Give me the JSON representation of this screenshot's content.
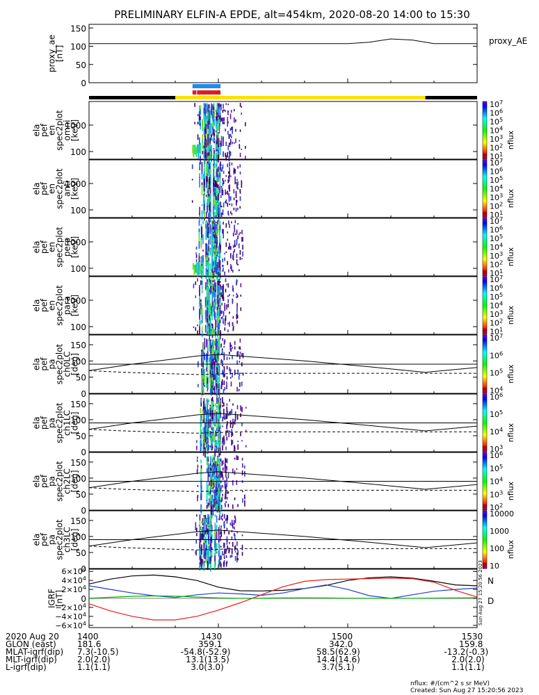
{
  "title": "PRELIMINARY ELFIN-A EPDE, alt=454km, 2020-08-20 14:00 to 15:30",
  "chart_data": [
    {
      "type": "line",
      "id": "proxy_ae",
      "ylabel": [
        "proxy_ae",
        "[nT]"
      ],
      "legend": "proxy_AE",
      "ylim": [
        0,
        160
      ],
      "yticks": [
        "150",
        "100",
        "50",
        "0"
      ],
      "x_minutes": [
        0,
        60,
        65,
        70,
        75,
        80,
        90
      ],
      "values": [
        107,
        107,
        111,
        120,
        117,
        107,
        107
      ]
    },
    {
      "type": "bar",
      "id": "science-zone-bars",
      "colors": {
        "night": "#000000",
        "science": "#ffe000",
        "blue": "#1e8cf0",
        "red": "#e81a1a"
      },
      "x_minutes": {
        "black_left": [
          0,
          20
        ],
        "yellow": [
          20,
          78
        ],
        "black_right": [
          78,
          90
        ],
        "blue": [
          24,
          30.5
        ],
        "red": [
          24,
          30.5
        ]
      }
    },
    {
      "type": "heatmap",
      "id": "spec-omni",
      "ylabel": [
        "ela",
        "pef",
        "en",
        "spec2plot",
        "omni",
        "[keV]"
      ],
      "yticks": [
        "1000",
        "100"
      ],
      "colorbar": {
        "label": "nflux",
        "ticks": [
          "10^7",
          "10^6",
          "10^5",
          "10^4",
          "10^3",
          "10^2",
          "10^1"
        ]
      }
    },
    {
      "type": "heatmap",
      "id": "spec-anti",
      "ylabel": [
        "ela",
        "pef",
        "en",
        "spec2plot",
        "anti",
        "[keV]"
      ],
      "yticks": [
        "1000",
        "100"
      ],
      "colorbar": {
        "label": "nflux",
        "ticks": [
          "10^7",
          "10^6",
          "10^5",
          "10^4",
          "10^3",
          "10^2",
          "10^1"
        ]
      }
    },
    {
      "type": "heatmap",
      "id": "spec-perp",
      "ylabel": [
        "ela",
        "pef",
        "en",
        "spec2plot",
        "perp",
        "[keV]"
      ],
      "yticks": [
        "1000",
        "100"
      ],
      "colorbar": {
        "label": "nflux",
        "ticks": [
          "10^7",
          "10^6",
          "10^5",
          "10^4",
          "10^3",
          "10^2",
          "10^1"
        ]
      }
    },
    {
      "type": "heatmap",
      "id": "spec-para",
      "ylabel": [
        "ela",
        "pef",
        "en",
        "spec2plot",
        "para",
        "[keV]"
      ],
      "yticks": [
        "1000",
        "100"
      ],
      "colorbar": {
        "label": "nflux",
        "ticks": [
          "10^7",
          "10^6",
          "10^5",
          "10^4",
          "10^3",
          "10^2",
          "10^1"
        ]
      }
    },
    {
      "type": "heatmap",
      "id": "pa-ch0",
      "ylabel": [
        "ela",
        "pef",
        "pa",
        "spec2plot",
        "ch0LC",
        "[deg]"
      ],
      "yticks": [
        "150",
        "100",
        "50",
        "0"
      ],
      "colorbar": {
        "label": "nflux",
        "ticks": [
          "10^7",
          "10^6",
          "10^5",
          "10^4"
        ]
      }
    },
    {
      "type": "heatmap",
      "id": "pa-ch1",
      "ylabel": [
        "ela",
        "pef",
        "pa",
        "spec2plot",
        "ch1LC",
        "[deg]"
      ],
      "yticks": [
        "150",
        "100",
        "50",
        "0"
      ],
      "colorbar": {
        "label": "nflux",
        "ticks": [
          "10^6",
          "10^5",
          "10^4",
          "10^3"
        ]
      }
    },
    {
      "type": "heatmap",
      "id": "pa-ch2",
      "ylabel": [
        "ela",
        "pef",
        "pa",
        "spec2plot",
        "ch2LC",
        "[deg]"
      ],
      "yticks": [
        "150",
        "100",
        "50",
        "0"
      ],
      "colorbar": {
        "label": "nflux",
        "ticks": [
          "10^6",
          "10^5",
          "10^4",
          "10^3",
          "10^2"
        ]
      }
    },
    {
      "type": "heatmap",
      "id": "pa-ch3",
      "ylabel": [
        "ela",
        "pef",
        "pa",
        "spec2plot",
        "ch3LC",
        "[deg]"
      ],
      "yticks": [
        "150",
        "100",
        "50",
        "0"
      ],
      "colorbar": {
        "label": "nflux",
        "ticks": [
          "10000",
          "1000",
          "100",
          "10"
        ]
      }
    },
    {
      "type": "line",
      "id": "igrf",
      "ylabel": [
        "IGRF",
        "[nT]"
      ],
      "ylim": [
        -65000,
        65000
      ],
      "yticks": [
        "6×10^4",
        "4×10^4",
        "2×10^4",
        "0",
        "−2×10^4",
        "−4×10^4",
        "−6×10^4"
      ],
      "legend": [
        "N",
        "D"
      ],
      "legend_colors": [
        "#1a3fd0",
        "#e07a00"
      ],
      "x_minutes": [
        0,
        5,
        10,
        15,
        20,
        25,
        30,
        35,
        40,
        45,
        50,
        55,
        60,
        65,
        70,
        75,
        80,
        85,
        90
      ],
      "series": [
        {
          "color": "#000000",
          "values": [
            32000,
            43000,
            50000,
            52000,
            48000,
            40000,
            25000,
            17000,
            16500,
            18000,
            22000,
            29000,
            40000,
            46000,
            48000,
            45000,
            38000,
            30000,
            28000
          ]
        },
        {
          "color": "#1a3fd0",
          "values": [
            28000,
            20000,
            12000,
            6000,
            2000,
            8000,
            12000,
            10000,
            7000,
            12000,
            22000,
            30000,
            20000,
            6000,
            0,
            8000,
            16000,
            20000,
            23000
          ]
        },
        {
          "color": "#e81a1a",
          "values": [
            -12000,
            -28000,
            -40000,
            -48000,
            -48000,
            -40000,
            -26000,
            -10000,
            8000,
            26000,
            38000,
            42000,
            43000,
            44000,
            45000,
            44000,
            36000,
            18000,
            3000
          ]
        },
        {
          "color": "#00b000",
          "values": [
            300,
            2500,
            4500,
            5500,
            5000,
            3000,
            1000,
            300,
            500,
            1000,
            1200,
            1000,
            500,
            300,
            200,
            300,
            600,
            1000,
            1400
          ]
        }
      ]
    }
  ],
  "xticks": [
    "1400",
    "1430",
    "1500",
    "1530"
  ],
  "footer": {
    "rows": [
      {
        "label": "2020 Aug 20",
        "values": [
          "1400",
          "1430",
          "1500",
          "1530"
        ]
      },
      {
        "label": "GLON (east)",
        "values": [
          "181.6",
          "359.1",
          "342.0",
          "159.8"
        ]
      },
      {
        "label": "MLAT-igrf(dip)",
        "values": [
          "7.3(-10.5)",
          "-54.8(-52.9)",
          "58.5(62.9)",
          "-13.2(-0.3)"
        ]
      },
      {
        "label": "MLT-igrf(dip)",
        "values": [
          "2.0(2.0)",
          "13.1(13.5)",
          "14.4(14.6)",
          "2.0(2.0)"
        ]
      },
      {
        "label": "L-igrf(dip)",
        "values": [
          "1.1(1.1)",
          "3.0(3.0)",
          "3.7(5.1)",
          "1.1(1.1)"
        ]
      }
    ],
    "nflux_note": "nflux: #/(cm^2 s sr MeV)",
    "created": "Created: Sun Aug 27 15:20:56 2023",
    "side_stamp": "Sun Aug 27 15:20:56 2023"
  }
}
